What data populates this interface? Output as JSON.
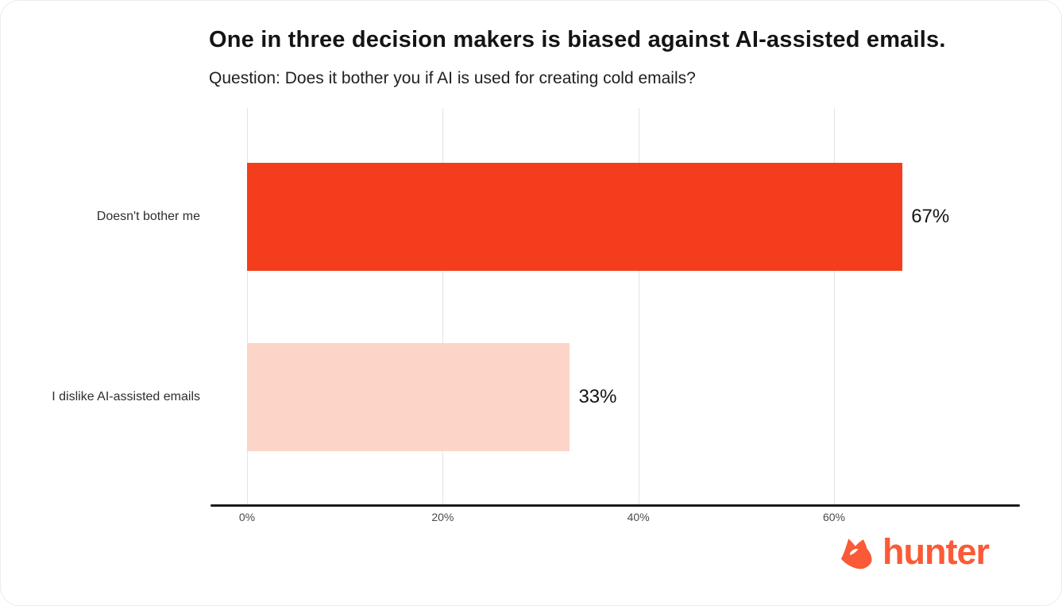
{
  "chart_data": {
    "type": "bar",
    "orientation": "horizontal",
    "title": "One in three decision makers is biased against AI-assisted emails.",
    "subtitle": "Question: Does it bother you if AI is used for creating cold emails?",
    "categories": [
      "Doesn't bother me",
      "I dislike AI-assisted emails"
    ],
    "values": [
      67,
      33
    ],
    "value_labels": [
      "67%",
      "33%"
    ],
    "bar_colors": [
      "#f43d1d",
      "#fcd4c8"
    ],
    "x_ticks": [
      "0%",
      "20%",
      "40%",
      "60%"
    ],
    "x_tick_values": [
      0,
      20,
      40,
      60
    ],
    "xlim": [
      0,
      79
    ],
    "xlabel": "",
    "ylabel": "",
    "grid": true,
    "legend": false
  },
  "logo": {
    "text": "hunter",
    "icon": "fox-icon",
    "color": "#fb5a36"
  },
  "colors": {
    "bar_primary": "#f43d1d",
    "bar_secondary": "#fcd4c8",
    "axis_line": "#1a1a1a",
    "gridline": "#e4e4e4",
    "title_text": "#141414",
    "tick_text": "#4a4a4a"
  }
}
